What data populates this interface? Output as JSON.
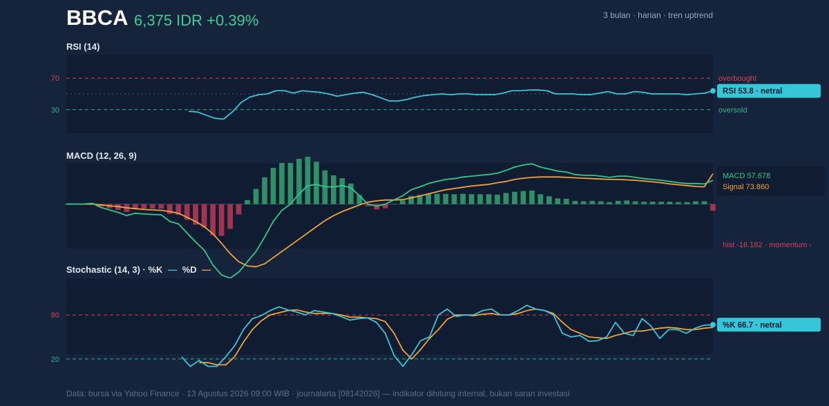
{
  "header": {
    "ticker": "BBCA",
    "price_text": "6,375 IDR +0.39%",
    "subtitle": "3 bulan · harian · tren uptrend"
  },
  "footer": "Data: bursa via Yahoo Finance · 13 Agustus 2026 09:00 WIB · journalarta [08142026] — indikator dihitung internal, bukan saran investasi",
  "colors": {
    "rsi_line": "#3ec5d8",
    "macd_line": "#34c98a",
    "signal_line": "#f2a33a",
    "hist_pos": "#2f8f66",
    "hist_neg": "#a3344f",
    "overbought": "#d0435a",
    "oversold": "#2bb58a",
    "badge": "#35c7d8"
  },
  "chart_data": [
    {
      "type": "line",
      "title": "RSI (14)",
      "ylim": [
        0,
        100
      ],
      "yticks": [
        70,
        30
      ],
      "overbought": {
        "value": 70,
        "label": "overbought"
      },
      "oversold": {
        "value": 30,
        "label": "oversold"
      },
      "midline": 50,
      "series": [
        {
          "values": [
            null,
            null,
            null,
            null,
            null,
            null,
            null,
            null,
            null,
            null,
            null,
            null,
            null,
            null,
            28,
            27,
            23,
            19,
            18,
            27,
            39,
            46,
            49,
            50,
            54,
            54,
            51,
            54,
            53,
            52,
            50,
            47,
            49,
            51,
            52,
            49,
            45,
            41,
            41,
            43,
            46,
            48,
            49,
            50,
            49,
            50,
            50,
            49,
            49,
            49,
            51,
            54,
            54,
            55,
            55,
            54,
            50,
            50,
            50,
            49,
            49,
            51,
            53,
            50,
            50,
            53,
            52,
            50,
            50,
            50,
            50,
            49,
            50,
            51,
            53.8
          ]
        }
      ],
      "last_badge": "RSI 53.8 · netral"
    },
    {
      "type": "line",
      "title": "MACD (12, 26, 9)",
      "ylim": [
        -180,
        100
      ],
      "series": [
        {
          "name": "MACD",
          "values": [
            0,
            0,
            0,
            2,
            -8,
            -14,
            -20,
            -28,
            -22,
            -24,
            -25,
            -26,
            -42,
            -48,
            -70,
            -92,
            -112,
            -148,
            -172,
            -180,
            -165,
            -140,
            -115,
            -80,
            -42,
            -15,
            0,
            25,
            45,
            48,
            42,
            42,
            45,
            40,
            20,
            0,
            -5,
            0,
            10,
            20,
            35,
            42,
            50,
            55,
            60,
            62,
            66,
            68,
            70,
            72,
            75,
            82,
            90,
            95,
            98,
            90,
            85,
            80,
            78,
            72,
            70,
            70,
            68,
            65,
            68,
            68,
            65,
            62,
            60,
            58,
            55,
            52,
            50,
            50,
            49,
            57.678
          ],
          "label": "MACD 57.678"
        },
        {
          "name": "Signal",
          "values": [
            0,
            0,
            0,
            0,
            -2,
            -4,
            -6,
            -9,
            -11,
            -13,
            -14,
            -15,
            -18,
            -22,
            -32,
            -42,
            -55,
            -72,
            -95,
            -120,
            -140,
            -150,
            -152,
            -145,
            -130,
            -115,
            -100,
            -85,
            -70,
            -55,
            -40,
            -28,
            -18,
            -10,
            -2,
            5,
            8,
            10,
            10,
            11,
            15,
            20,
            25,
            30,
            35,
            38,
            41,
            44,
            46,
            48,
            52,
            55,
            60,
            63,
            65,
            66,
            66,
            66,
            65,
            64,
            63,
            62,
            61,
            60,
            60,
            59,
            58,
            56,
            54,
            52,
            49,
            47,
            45,
            43,
            42,
            73.86
          ],
          "label": "Signal 73.860"
        }
      ],
      "histogram": [
        0,
        0,
        0,
        2,
        -6,
        -10,
        -14,
        -19,
        -11,
        -11,
        -11,
        -11,
        -24,
        -26,
        -38,
        -50,
        -57,
        -76,
        -77,
        -60,
        -25,
        10,
        37,
        65,
        88,
        100,
        100,
        110,
        115,
        103,
        82,
        70,
        63,
        50,
        22,
        -5,
        -13,
        -10,
        0,
        9,
        20,
        22,
        25,
        25,
        25,
        24,
        25,
        24,
        24,
        24,
        23,
        27,
        30,
        32,
        33,
        24,
        19,
        14,
        13,
        8,
        7,
        8,
        7,
        5,
        8,
        9,
        7,
        6,
        6,
        6,
        6,
        5,
        5,
        7,
        7,
        -16.182
      ],
      "hist_label": "hist -16.182 · momentum -"
    },
    {
      "type": "line",
      "title": "Stochastic (14, 3) · %K",
      "title_d": "%D",
      "ylim": [
        0,
        100
      ],
      "yticks": [
        80,
        20
      ],
      "overbought": {
        "value": 80
      },
      "oversold": {
        "value": 20
      },
      "series": [
        {
          "name": "%K",
          "values": [
            null,
            null,
            null,
            null,
            null,
            null,
            null,
            null,
            null,
            null,
            null,
            null,
            null,
            23,
            10,
            18,
            10,
            10,
            23,
            38,
            60,
            75,
            79,
            86,
            91,
            87,
            84,
            80,
            86,
            84,
            82,
            78,
            73,
            75,
            76,
            70,
            55,
            25,
            10,
            26,
            45,
            50,
            80,
            88,
            78,
            80,
            80,
            86,
            88,
            80,
            80,
            86,
            93,
            88,
            86,
            80,
            55,
            50,
            52,
            44,
            45,
            50,
            70,
            55,
            52,
            75,
            65,
            48,
            60,
            60,
            55,
            62,
            66,
            66.7
          ],
          "label": "%K 66.7 · netral"
        },
        {
          "name": "%D",
          "values": [
            null,
            null,
            null,
            null,
            null,
            null,
            null,
            null,
            null,
            null,
            null,
            null,
            null,
            null,
            null,
            15,
            15,
            12,
            12,
            23,
            43,
            60,
            72,
            80,
            83,
            86,
            87,
            84,
            82,
            82,
            82,
            80,
            77,
            77,
            76,
            75,
            71,
            55,
            32,
            20,
            33,
            48,
            60,
            74,
            80,
            80,
            79,
            81,
            82,
            80,
            80,
            82,
            86,
            88,
            86,
            82,
            70,
            60,
            55,
            50,
            49,
            48,
            52,
            55,
            58,
            58,
            60,
            62,
            63,
            62,
            60,
            60,
            62,
            63
          ]
        }
      ]
    }
  ]
}
